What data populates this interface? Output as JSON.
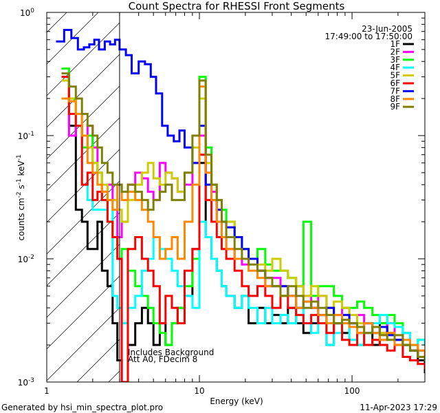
{
  "chart_data": {
    "type": "line",
    "title": "Count Spectra for RHESSI Front Segments",
    "xlabel": "Energy (keV)",
    "ylabel_base": "counts cm",
    "ylabel_full": "counts cm-2 s-1 keV-1",
    "xscale": "log",
    "yscale": "log",
    "xlim": [
      1,
      300
    ],
    "ylim": [
      0.001,
      1
    ],
    "x_ticks": [
      {
        "value": 1,
        "label": "1"
      },
      {
        "value": 10,
        "label": "10"
      },
      {
        "value": 100,
        "label": "100"
      }
    ],
    "y_ticks": [
      {
        "value": 1,
        "mant": "10",
        "exp": "0"
      },
      {
        "value": 0.1,
        "mant": "10",
        "exp": "-1"
      },
      {
        "value": 0.01,
        "mant": "10",
        "exp": "-2"
      },
      {
        "value": 0.001,
        "mant": "10",
        "exp": "-3"
      }
    ],
    "date": "23-Jun-2005",
    "time_range": "17:49:00 to 17:50:00",
    "annotation_lines": [
      "Includes Background",
      "Att A0, FDecim 8"
    ],
    "hatched_range": [
      1,
      3
    ],
    "legend_position": "top-right",
    "series": [
      {
        "name": "1F",
        "color": "#000000",
        "x": [
          1.25,
          1.4,
          1.55,
          1.7,
          1.85,
          2.0,
          2.15,
          2.3,
          2.5,
          2.7,
          2.9,
          3.1,
          3.4,
          3.8,
          4.2,
          4.6,
          5.0,
          5.5,
          6.0,
          6.6,
          7.2,
          8,
          9,
          10,
          11,
          12,
          13,
          14,
          15,
          17,
          19,
          21,
          24,
          27,
          30,
          34,
          38,
          43,
          48,
          54,
          60,
          68,
          76,
          86,
          96,
          108,
          120,
          136,
          152,
          170,
          190,
          215,
          240,
          270,
          300
        ],
        "y": [
          0.3,
          0.12,
          0.025,
          0.02,
          0.012,
          0.012,
          0.02,
          0.008,
          0.006,
          0.003,
          0.0015,
          0.001,
          0.002,
          0.003,
          0.004,
          0.003,
          0.002,
          0.003,
          0.002,
          0.003,
          0.004,
          0.005,
          0.012,
          0.06,
          0.015,
          0.01,
          0.008,
          0.006,
          0.005,
          0.004,
          0.005,
          0.003,
          0.004,
          0.003,
          0.0035,
          0.003,
          0.004,
          0.003,
          0.0025,
          0.003,
          0.0035,
          0.002,
          0.003,
          0.0025,
          0.003,
          0.002,
          0.0025,
          0.002,
          0.003,
          0.0025,
          0.0022,
          0.002,
          0.0018,
          0.0015,
          0.0012
        ]
      },
      {
        "name": "2F",
        "color": "#ff00ff",
        "x": [
          1.25,
          1.4,
          1.55,
          1.7,
          1.85,
          2.0,
          2.15,
          2.3,
          2.5,
          2.7,
          2.9,
          3.1,
          3.4,
          3.8,
          4.2,
          4.6,
          5.0,
          5.5,
          6.0,
          6.6,
          7.2,
          8,
          9,
          10,
          11,
          12,
          13,
          14,
          15,
          17,
          19,
          21,
          24,
          27,
          30,
          34,
          38,
          43,
          48,
          54,
          60,
          68,
          76,
          86,
          96,
          108,
          120,
          136,
          152,
          170,
          190,
          215,
          240,
          270,
          300
        ],
        "y": [
          0.3,
          0.1,
          0.12,
          0.1,
          0.12,
          0.08,
          0.05,
          0.035,
          0.04,
          0.03,
          0.015,
          0.02,
          0.04,
          0.05,
          0.045,
          0.035,
          0.03,
          0.06,
          0.05,
          0.045,
          0.035,
          0.04,
          0.06,
          0.1,
          0.05,
          0.035,
          0.02,
          0.015,
          0.012,
          0.01,
          0.009,
          0.01,
          0.008,
          0.006,
          0.007,
          0.006,
          0.005,
          0.006,
          0.005,
          0.004,
          0.005,
          0.004,
          0.0035,
          0.004,
          0.003,
          0.0035,
          0.003,
          0.0028,
          0.0025,
          0.003,
          0.0022,
          0.0025,
          0.002,
          0.0018,
          0.0015
        ]
      },
      {
        "name": "3F",
        "color": "#00ff00",
        "x": [
          1.25,
          1.4,
          1.55,
          1.7,
          1.85,
          2.0,
          2.15,
          2.3,
          2.5,
          2.7,
          2.9,
          3.1,
          3.4,
          3.8,
          4.2,
          4.6,
          5.0,
          5.5,
          6.0,
          6.6,
          7.2,
          8,
          9,
          10,
          11,
          12,
          13,
          14,
          15,
          17,
          19,
          21,
          24,
          27,
          30,
          34,
          38,
          43,
          48,
          54,
          60,
          68,
          76,
          86,
          96,
          108,
          120,
          136,
          152,
          170,
          190,
          215,
          240,
          270,
          300
        ],
        "y": [
          0.35,
          0.2,
          0.12,
          0.08,
          0.1,
          0.06,
          0.05,
          0.03,
          0.02,
          0.015,
          0.01,
          0.012,
          0.008,
          0.006,
          0.005,
          0.004,
          0.003,
          0.0025,
          0.002,
          0.003,
          0.004,
          0.006,
          0.01,
          0.3,
          0.08,
          0.04,
          0.03,
          0.025,
          0.02,
          0.015,
          0.012,
          0.01,
          0.012,
          0.009,
          0.008,
          0.008,
          0.007,
          0.006,
          0.02,
          0.005,
          0.006,
          0.006,
          0.005,
          0.004,
          0.004,
          0.0045,
          0.004,
          0.0035,
          0.003,
          0.0035,
          0.003,
          0.0025,
          0.002,
          0.0022,
          0.002
        ]
      },
      {
        "name": "4F",
        "color": "#00ffff",
        "x": [
          1.25,
          1.4,
          1.55,
          1.7,
          1.85,
          2.0,
          2.15,
          2.3,
          2.5,
          2.7,
          2.9,
          3.1,
          3.4,
          3.8,
          4.2,
          4.6,
          5.0,
          5.5,
          6.0,
          6.6,
          7.2,
          8,
          9,
          10,
          11,
          12,
          13,
          14,
          15,
          17,
          19,
          21,
          24,
          27,
          30,
          34,
          38,
          43,
          48,
          54,
          60,
          68,
          76,
          86,
          96,
          108,
          120,
          136,
          152,
          170,
          190,
          215,
          240,
          270,
          300
        ],
        "y": [
          0.3,
          0.15,
          0.12,
          0.04,
          0.03,
          0.025,
          0.025,
          0.025,
          0.03,
          0.005,
          0.004,
          0.003,
          0.004,
          0.005,
          0.008,
          0.01,
          0.015,
          0.012,
          0.01,
          0.008,
          0.006,
          0.005,
          0.004,
          0.02,
          0.015,
          0.01,
          0.008,
          0.006,
          0.005,
          0.004,
          0.005,
          0.004,
          0.003,
          0.004,
          0.003,
          0.0035,
          0.003,
          0.004,
          0.003,
          0.0025,
          0.003,
          0.002,
          0.0025,
          0.003,
          0.0022,
          0.002,
          0.0025,
          0.003,
          0.0035,
          0.003,
          0.0028,
          0.0025,
          0.002,
          0.0022,
          0.002
        ]
      },
      {
        "name": "5F",
        "color": "#cccc00",
        "x": [
          1.25,
          1.4,
          1.55,
          1.7,
          1.85,
          2.0,
          2.15,
          2.3,
          2.5,
          2.7,
          2.9,
          3.1,
          3.4,
          3.8,
          4.2,
          4.6,
          5.0,
          5.5,
          6.0,
          6.6,
          7.2,
          8,
          9,
          10,
          11,
          12,
          13,
          14,
          15,
          17,
          19,
          21,
          24,
          27,
          30,
          34,
          38,
          43,
          48,
          54,
          60,
          68,
          76,
          86,
          96,
          108,
          120,
          136,
          152,
          170,
          190,
          215,
          240,
          270,
          300
        ],
        "y": [
          0.28,
          0.2,
          0.15,
          0.1,
          0.08,
          0.06,
          0.05,
          0.04,
          0.03,
          0.03,
          0.025,
          0.02,
          0.03,
          0.04,
          0.05,
          0.06,
          0.045,
          0.04,
          0.05,
          0.045,
          0.035,
          0.05,
          0.08,
          0.2,
          0.06,
          0.04,
          0.03,
          0.02,
          0.02,
          0.015,
          0.012,
          0.01,
          0.009,
          0.008,
          0.01,
          0.008,
          0.007,
          0.006,
          0.005,
          0.006,
          0.005,
          0.004,
          0.0045,
          0.004,
          0.0035,
          0.003,
          0.003,
          0.0028,
          0.0025,
          0.0025,
          0.0022,
          0.002,
          0.0018,
          0.0016,
          0.0015
        ]
      },
      {
        "name": "6F",
        "color": "#ff0000",
        "x": [
          1.25,
          1.4,
          1.55,
          1.7,
          1.85,
          2.0,
          2.15,
          2.3,
          2.5,
          2.7,
          2.9,
          3.1,
          3.4,
          3.8,
          4.2,
          4.6,
          5.0,
          5.5,
          6.0,
          6.6,
          7.2,
          8,
          9,
          10,
          11,
          12,
          13,
          14,
          15,
          17,
          19,
          21,
          24,
          27,
          30,
          34,
          38,
          43,
          48,
          54,
          60,
          68,
          76,
          86,
          96,
          108,
          120,
          136,
          152,
          170,
          190,
          215,
          240,
          270,
          300
        ],
        "y": [
          0.3,
          0.15,
          0.12,
          0.04,
          0.05,
          0.03,
          0.035,
          0.03,
          0.02,
          0.015,
          0.01,
          0.001,
          0.012,
          0.015,
          0.01,
          0.008,
          0.006,
          0.003,
          0.005,
          0.004,
          0.003,
          0.008,
          0.012,
          0.07,
          0.03,
          0.02,
          0.015,
          0.012,
          0.01,
          0.008,
          0.006,
          0.005,
          0.006,
          0.005,
          0.004,
          0.005,
          0.004,
          0.0035,
          0.003,
          0.0035,
          0.003,
          0.0025,
          0.003,
          0.0022,
          0.002,
          0.0025,
          0.002,
          0.0022,
          0.002,
          0.0018,
          0.002,
          0.0016,
          0.0015,
          0.0014,
          0.0013
        ]
      },
      {
        "name": "7F",
        "color": "#0000ff",
        "x": [
          1.15,
          1.3,
          1.45,
          1.6,
          1.75,
          1.9,
          2.05,
          2.2,
          2.4,
          2.6,
          2.8,
          3.0,
          3.3,
          3.6,
          4.0,
          4.4,
          4.8,
          5.2,
          5.7,
          6.2,
          6.8,
          7.4,
          8,
          9,
          10,
          11,
          12,
          13,
          14,
          15,
          17,
          19,
          21,
          24,
          27,
          30,
          34,
          38,
          43,
          48,
          54,
          60,
          68,
          76,
          86,
          96,
          108,
          120,
          136,
          152,
          170,
          190,
          215,
          240,
          270,
          300
        ],
        "y": [
          0.58,
          0.72,
          0.62,
          0.5,
          0.52,
          0.55,
          0.6,
          0.5,
          0.58,
          0.55,
          0.6,
          0.5,
          0.45,
          0.32,
          0.4,
          0.38,
          0.3,
          0.22,
          0.12,
          0.1,
          0.09,
          0.11,
          0.08,
          0.06,
          0.12,
          0.04,
          0.03,
          0.025,
          0.02,
          0.018,
          0.015,
          0.012,
          0.01,
          0.008,
          0.007,
          0.006,
          0.006,
          0.005,
          0.004,
          0.0045,
          0.004,
          0.0035,
          0.004,
          0.003,
          0.0035,
          0.003,
          0.0028,
          0.003,
          0.0025,
          0.0028,
          0.0024,
          0.0022,
          0.002,
          0.0018,
          0.0016,
          0.0015
        ]
      },
      {
        "name": "8F",
        "color": "#ff8800",
        "x": [
          1.25,
          1.4,
          1.55,
          1.7,
          1.85,
          2.0,
          2.15,
          2.3,
          2.5,
          2.7,
          2.9,
          3.1,
          3.4,
          3.8,
          4.2,
          4.6,
          5.0,
          5.5,
          6.0,
          6.6,
          7.2,
          8,
          9,
          10,
          11,
          12,
          13,
          14,
          15,
          17,
          19,
          21,
          24,
          27,
          30,
          34,
          38,
          43,
          48,
          54,
          60,
          68,
          76,
          86,
          96,
          108,
          120,
          136,
          152,
          170,
          190,
          215,
          240,
          270,
          300
        ],
        "y": [
          0.2,
          0.19,
          0.15,
          0.1,
          0.06,
          0.05,
          0.04,
          0.035,
          0.03,
          0.025,
          0.04,
          0.03,
          0.035,
          0.03,
          0.025,
          0.02,
          0.015,
          0.01,
          0.012,
          0.015,
          0.01,
          0.02,
          0.04,
          0.25,
          0.05,
          0.03,
          0.02,
          0.015,
          0.012,
          0.01,
          0.01,
          0.008,
          0.007,
          0.006,
          0.006,
          0.005,
          0.005,
          0.004,
          0.0045,
          0.004,
          0.0035,
          0.003,
          0.0035,
          0.003,
          0.0028,
          0.0025,
          0.003,
          0.0025,
          0.0022,
          0.0025,
          0.002,
          0.0022,
          0.002,
          0.0018,
          0.0016
        ]
      },
      {
        "name": "9F",
        "color": "#808000",
        "x": [
          1.25,
          1.4,
          1.55,
          1.7,
          1.85,
          2.0,
          2.15,
          2.3,
          2.5,
          2.7,
          2.9,
          3.1,
          3.4,
          3.8,
          4.2,
          4.6,
          5.0,
          5.5,
          6.0,
          6.6,
          7.2,
          8,
          9,
          10,
          11,
          12,
          13,
          14,
          15,
          17,
          19,
          21,
          24,
          27,
          30,
          34,
          38,
          43,
          48,
          54,
          60,
          68,
          76,
          86,
          96,
          108,
          120,
          136,
          152,
          170,
          190,
          215,
          240,
          270,
          300
        ],
        "y": [
          0.32,
          0.25,
          0.2,
          0.15,
          0.12,
          0.1,
          0.08,
          0.06,
          0.05,
          0.04,
          0.04,
          0.035,
          0.04,
          0.035,
          0.03,
          0.025,
          0.03,
          0.035,
          0.04,
          0.03,
          0.03,
          0.05,
          0.1,
          0.28,
          0.07,
          0.04,
          0.03,
          0.02,
          0.015,
          0.012,
          0.01,
          0.009,
          0.008,
          0.007,
          0.006,
          0.005,
          0.006,
          0.005,
          0.004,
          0.0045,
          0.004,
          0.0035,
          0.003,
          0.0032,
          0.003,
          0.0028,
          0.0025,
          0.0028,
          0.0024,
          0.0022,
          0.0024,
          0.002,
          0.0018,
          0.0016,
          0.0015
        ]
      }
    ]
  },
  "footer": {
    "generated_by": "Generated by hsi_min_spectra_plot.pro",
    "timestamp": "11-Apr-2023 17:29"
  }
}
